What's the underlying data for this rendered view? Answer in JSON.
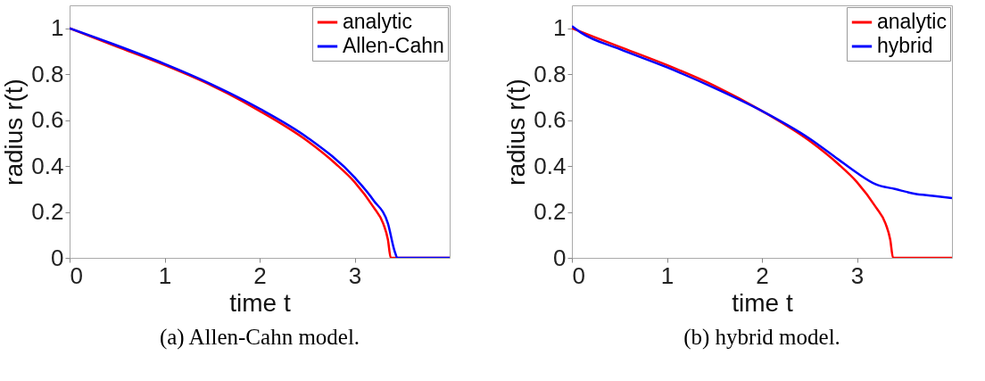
{
  "chart_data": [
    {
      "type": "line",
      "xlabel": "time t",
      "ylabel": "radius r(t)",
      "xlim": [
        0,
        4
      ],
      "ylim": [
        0,
        1.1
      ],
      "xticks": [
        0,
        1,
        2,
        3
      ],
      "yticks": [
        0,
        0.2,
        0.4,
        0.6,
        0.8,
        1
      ],
      "grid": false,
      "legend": "top right",
      "annotations": [
        "(a)  Allen-Cahn model."
      ],
      "series": [
        {
          "name": "analytic",
          "color": "#ff0000",
          "x": [
            0,
            0.5,
            1,
            1.5,
            2,
            2.5,
            2.8,
            3,
            3.2,
            3.3,
            3.35,
            3.38,
            4
          ],
          "values": [
            1,
            0.92,
            0.84,
            0.75,
            0.64,
            0.51,
            0.41,
            0.33,
            0.22,
            0.15,
            0.08,
            0,
            0
          ]
        },
        {
          "name": "Allen-Cahn",
          "color": "#0000ff",
          "x": [
            0,
            0.5,
            1,
            1.5,
            2,
            2.5,
            3,
            3.2,
            3.35,
            3.42,
            3.45,
            4
          ],
          "values": [
            1,
            0.925,
            0.845,
            0.755,
            0.65,
            0.525,
            0.35,
            0.25,
            0.15,
            0.03,
            0,
            0
          ]
        }
      ]
    },
    {
      "type": "line",
      "xlabel": "time t",
      "ylabel": "radius r(t)",
      "xlim": [
        0,
        4
      ],
      "ylim": [
        0,
        1.1
      ],
      "xticks": [
        0,
        1,
        2,
        3
      ],
      "yticks": [
        0,
        0.2,
        0.4,
        0.6,
        0.8,
        1
      ],
      "grid": false,
      "legend": "top right",
      "annotations": [
        "(b)  hybrid model."
      ],
      "series": [
        {
          "name": "analytic",
          "color": "#ff0000",
          "x": [
            0,
            0.5,
            1,
            1.5,
            2,
            2.5,
            2.8,
            3,
            3.2,
            3.3,
            3.35,
            3.38,
            4
          ],
          "values": [
            1,
            0.92,
            0.84,
            0.75,
            0.64,
            0.51,
            0.41,
            0.33,
            0.22,
            0.15,
            0.08,
            0,
            0
          ]
        },
        {
          "name": "hybrid",
          "color": "#0000ff",
          "x": [
            0,
            0.1,
            0.5,
            1,
            1.5,
            2,
            2.5,
            2.8,
            3,
            3.2,
            3.4,
            3.6,
            3.8,
            4
          ],
          "values": [
            1.01,
            0.98,
            0.91,
            0.83,
            0.74,
            0.64,
            0.52,
            0.43,
            0.37,
            0.32,
            0.3,
            0.28,
            0.27,
            0.26
          ]
        }
      ]
    }
  ]
}
